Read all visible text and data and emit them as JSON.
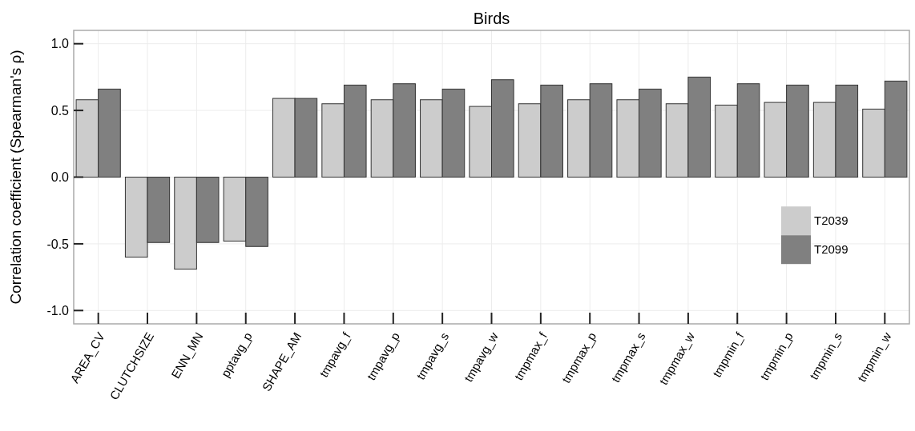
{
  "chart_data": {
    "type": "bar",
    "title": "Birds",
    "ylabel": "Correlation coefficient (Spearman's ρ)",
    "categories": [
      "AREA_CV",
      "CLUTCHSIZE",
      "ENN_MN",
      "pptavg_p",
      "SHAPE_AM",
      "tmpavg_f",
      "tmpavg_p",
      "tmpavg_s",
      "tmpavg_w",
      "tmpmax_f",
      "tmpmax_p",
      "tmpmax_s",
      "tmpmax_w",
      "tmpmin_f",
      "tmpmin_p",
      "tmpmin_s",
      "tmpmin_w"
    ],
    "series": [
      {
        "name": "T2039",
        "color": "#cccccc",
        "values": [
          0.58,
          -0.6,
          -0.69,
          -0.48,
          0.59,
          0.55,
          0.58,
          0.58,
          0.53,
          0.55,
          0.58,
          0.58,
          0.55,
          0.54,
          0.56,
          0.56,
          0.51
        ]
      },
      {
        "name": "T2099",
        "color": "#808080",
        "values": [
          0.66,
          -0.49,
          -0.49,
          -0.52,
          0.59,
          0.69,
          0.7,
          0.66,
          0.73,
          0.69,
          0.7,
          0.66,
          0.75,
          0.7,
          0.69,
          0.69,
          0.72
        ]
      }
    ],
    "ylim": [
      -1.1,
      1.1
    ],
    "yticks": [
      {
        "value": 1,
        "label": "1.0"
      },
      {
        "value": 0.5,
        "label": "0.5"
      },
      {
        "value": 0,
        "label": "0.0"
      },
      {
        "value": -0.5,
        "label": "-0.5"
      },
      {
        "value": -1,
        "label": "-1.0"
      }
    ],
    "grid": true,
    "legend": "right"
  }
}
